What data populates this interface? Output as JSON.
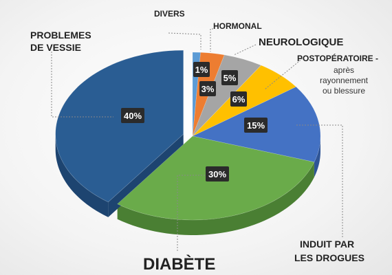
{
  "chart_data": {
    "type": "pie",
    "title": "",
    "slices": [
      {
        "key": "diabete",
        "label": "DIABÈTE",
        "value": 30,
        "pct_label": "30%",
        "color": "#6aab4a",
        "side": "#4a7f33"
      },
      {
        "key": "vessie",
        "label": "PROBLEMES DE VESSIE",
        "value": 40,
        "pct_label": "40%",
        "color": "#2a5d93",
        "side": "#1d4470",
        "exploded": true
      },
      {
        "key": "divers",
        "label": "DIVERS",
        "value": 1,
        "pct_label": "1%",
        "color": "#5b9bd5",
        "side": "#3f79ad"
      },
      {
        "key": "hormonal",
        "label": "HORMONAL",
        "value": 3,
        "pct_label": "3%",
        "color": "#ed7d31",
        "side": "#b85d20"
      },
      {
        "key": "neuro",
        "label": "NEUROLOGIQUE",
        "value": 5,
        "pct_label": "5%",
        "color": "#a5a5a5",
        "side": "#7d7d7d"
      },
      {
        "key": "postop",
        "label": "POSTOPÉRATOIRE -",
        "sublabel_lines": [
          "après",
          "rayonnement",
          "ou blessure"
        ],
        "value": 6,
        "pct_label": "6%",
        "color": "#ffc000",
        "side": "#c99700"
      },
      {
        "key": "drogues",
        "label": "INDUIT PAR LES DROGUES",
        "value": 15,
        "pct_label": "15%",
        "color": "#4472c4",
        "side": "#2f5597"
      }
    ]
  },
  "labels": {
    "divers": "DIVERS",
    "hormonal": "HORMONAL",
    "neuro": "NEUROLOGIQUE",
    "postop_title": "POSTOPÉRATOIRE -",
    "postop_line1": "après",
    "postop_line2": "rayonnement",
    "postop_line3": "ou blessure",
    "vessie_line1": "PROBLEMES",
    "vessie_line2": "DE VESSIE",
    "drogues_line1": "INDUIT PAR",
    "drogues_line2": "LES DROGUES",
    "diabete": "DIABÈTE"
  }
}
